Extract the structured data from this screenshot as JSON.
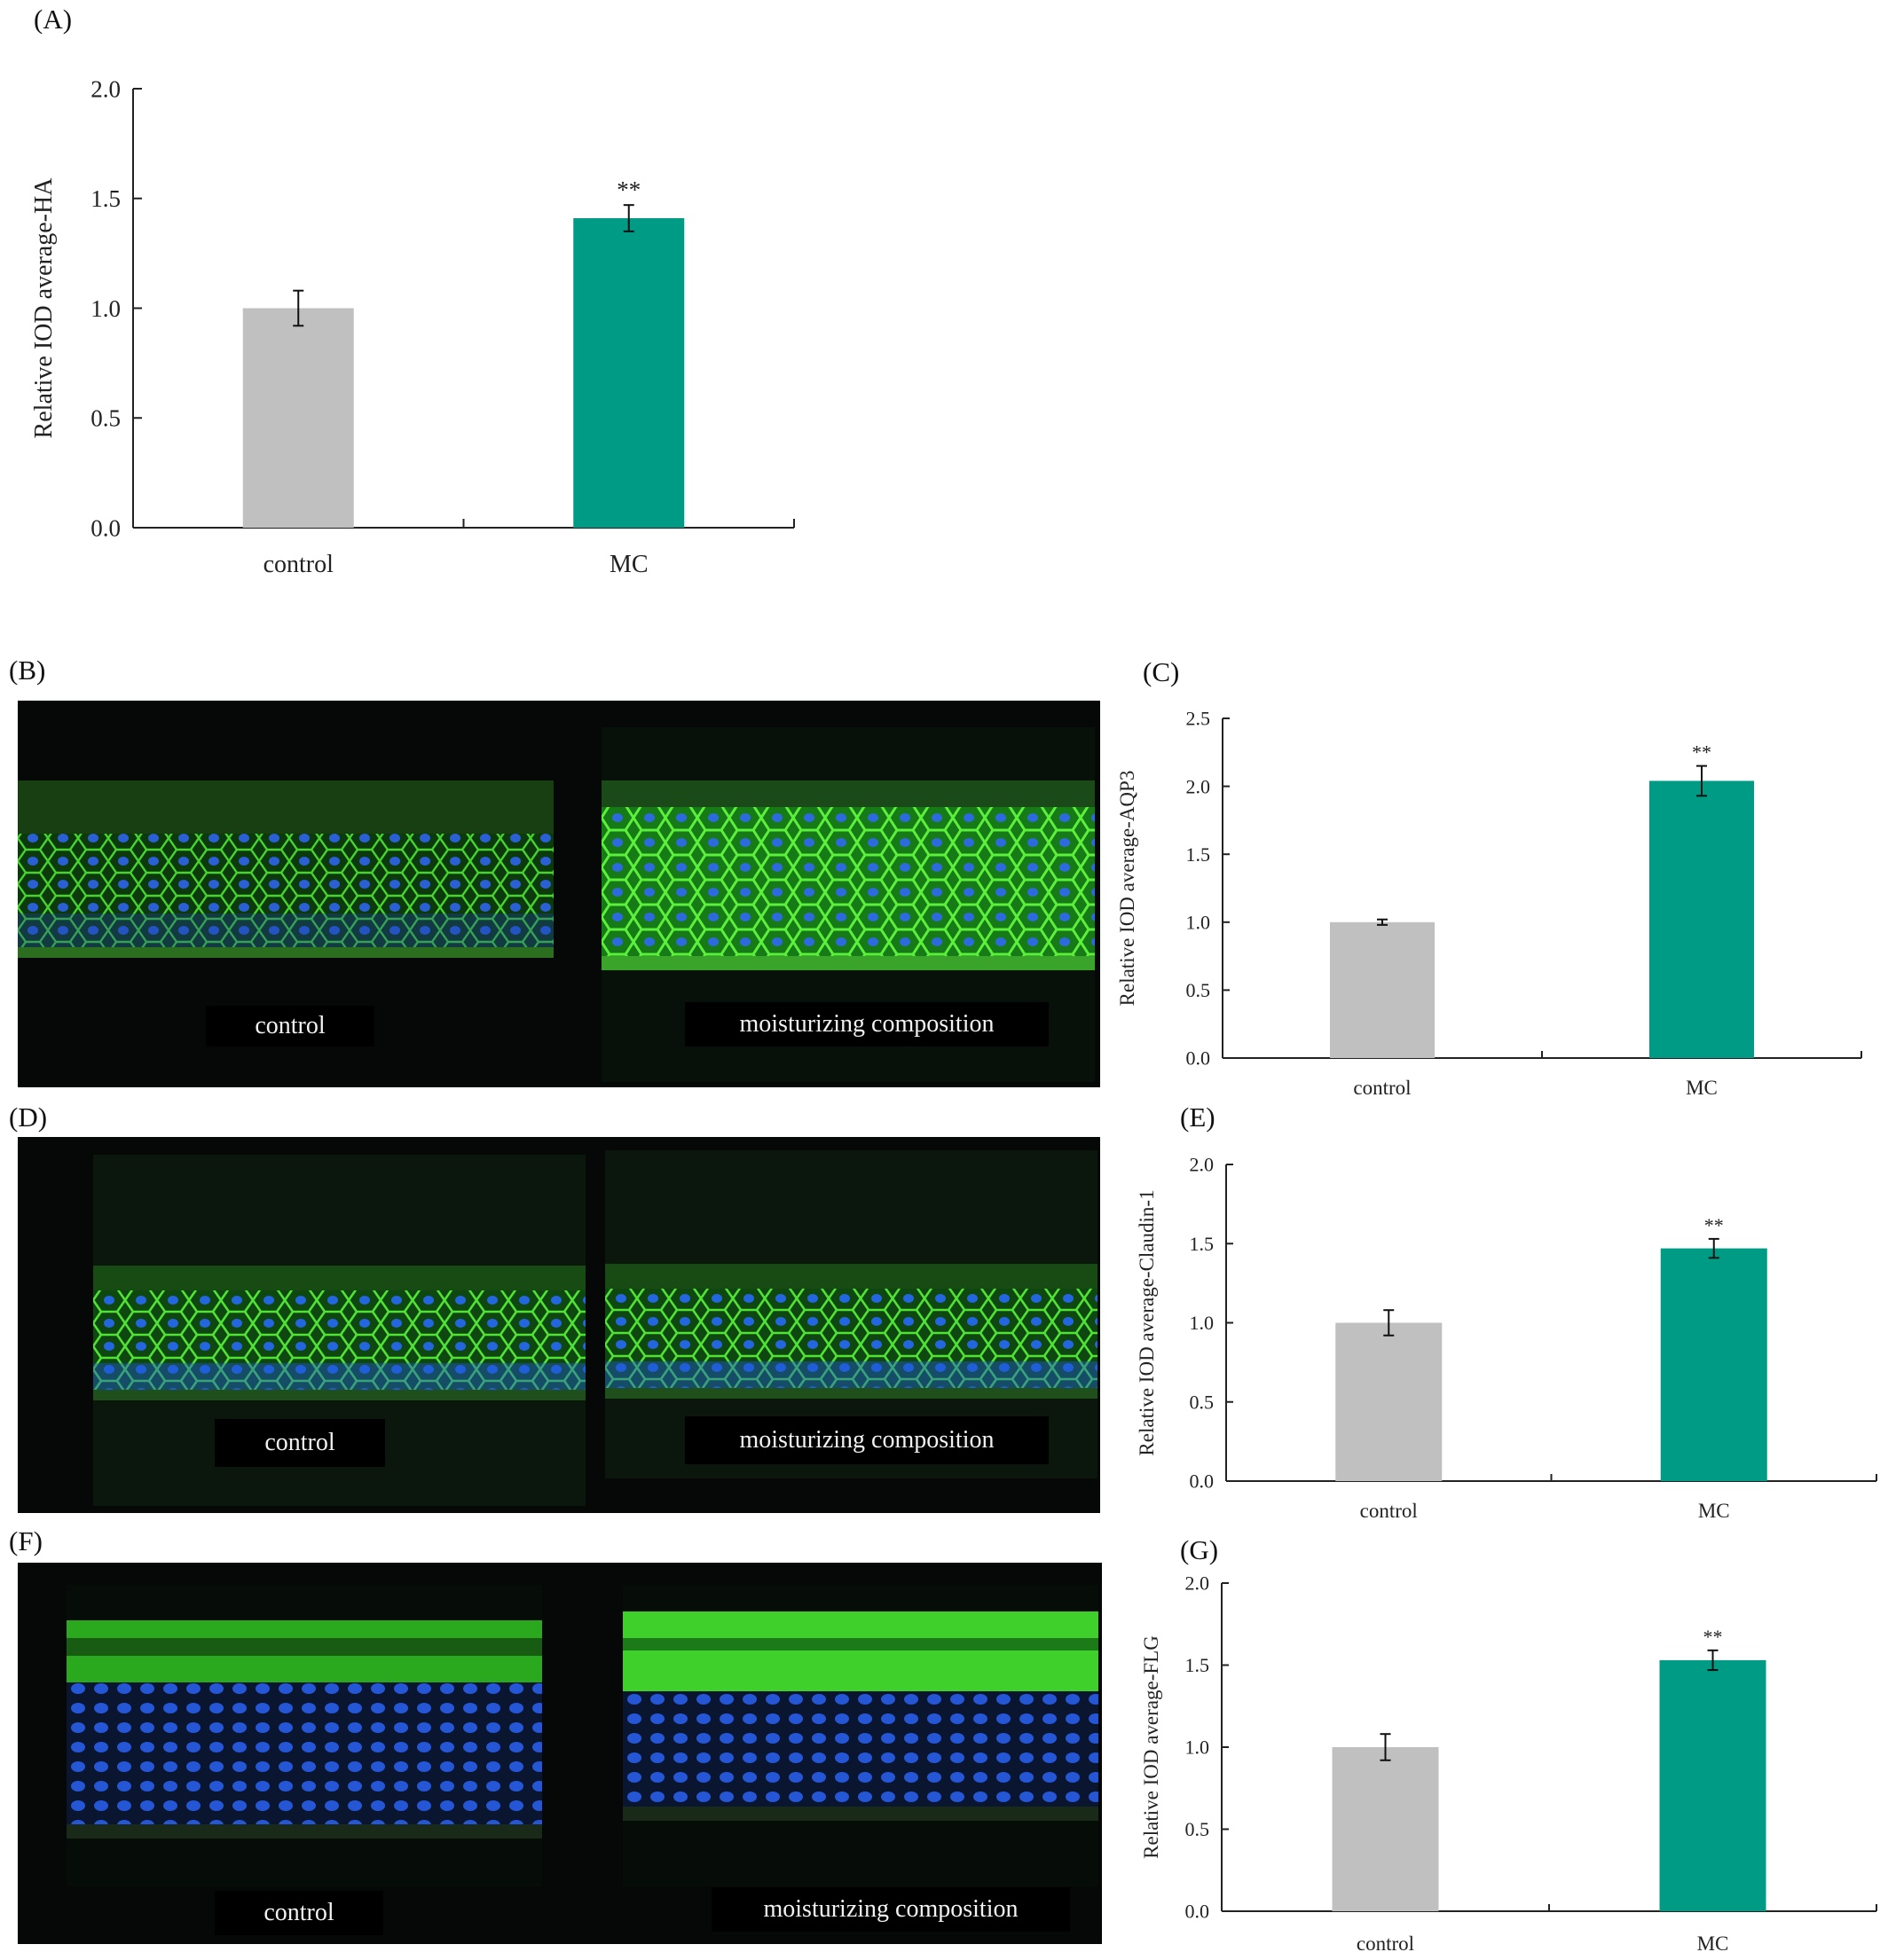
{
  "panel_labels": {
    "A": "(A)",
    "B": "(B)",
    "C": "(C)",
    "D": "(D)",
    "E": "(E)",
    "F": "(F)",
    "G": "(G)"
  },
  "micrographs": {
    "B": {
      "left_caption": "control",
      "right_caption": "moisturizing composition"
    },
    "D": {
      "left_caption": "control",
      "right_caption": "moisturizing composition"
    },
    "F": {
      "left_caption": "control",
      "right_caption": "moisturizing composition"
    }
  },
  "colors": {
    "control_bar": "#c0c0c0",
    "mc_bar": "#009b84",
    "membrane_green": "#3fd12a",
    "nucleus_blue": "#1e5ad8"
  },
  "chart_data": [
    {
      "panel": "A",
      "type": "bar",
      "categories": [
        "control",
        "MC"
      ],
      "values": [
        1.0,
        1.41
      ],
      "errors": [
        0.08,
        0.06
      ],
      "annotations": [
        "",
        "**"
      ],
      "ylabel": "Relative IOD average-HA",
      "ylim": [
        0,
        2.0
      ],
      "yticks": [
        "0.0",
        "0.5",
        "1.0",
        "1.5",
        "2.0"
      ],
      "grid": false
    },
    {
      "panel": "C",
      "type": "bar",
      "categories": [
        "control",
        "MC"
      ],
      "values": [
        1.0,
        2.04
      ],
      "errors": [
        0.02,
        0.11
      ],
      "annotations": [
        "",
        "**"
      ],
      "ylabel": "Relative IOD average-AQP3",
      "ylim": [
        0,
        2.5
      ],
      "yticks": [
        "0.0",
        "0.5",
        "1.0",
        "1.5",
        "2.0",
        "2.5"
      ],
      "grid": false
    },
    {
      "panel": "E",
      "type": "bar",
      "categories": [
        "control",
        "MC"
      ],
      "values": [
        1.0,
        1.47
      ],
      "errors": [
        0.08,
        0.06
      ],
      "annotations": [
        "",
        "**"
      ],
      "ylabel": "Relative IOD average-Claudin-1",
      "ylim": [
        0,
        2.0
      ],
      "yticks": [
        "0.0",
        "0.5",
        "1.0",
        "1.5",
        "2.0"
      ],
      "grid": false
    },
    {
      "panel": "G",
      "type": "bar",
      "categories": [
        "control",
        "MC"
      ],
      "values": [
        1.0,
        1.53
      ],
      "errors": [
        0.08,
        0.06
      ],
      "annotations": [
        "",
        "**"
      ],
      "ylabel": "Relative IOD average-FLG",
      "ylim": [
        0,
        2.0
      ],
      "yticks": [
        "0.0",
        "0.5",
        "1.0",
        "1.5",
        "2.0"
      ],
      "grid": false
    }
  ]
}
